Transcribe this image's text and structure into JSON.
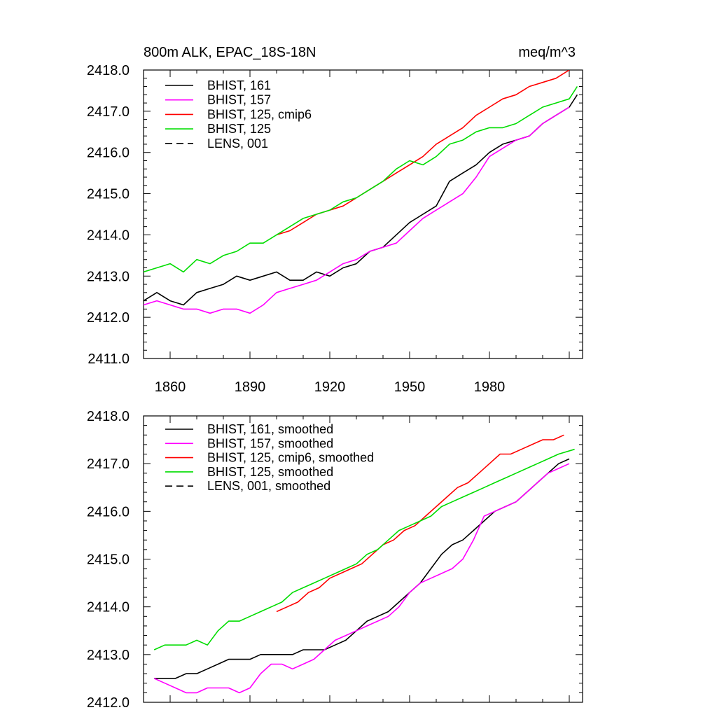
{
  "chart_data": [
    {
      "type": "line",
      "title": "800m ALK, EPAC_18S-18N",
      "units": "meq/m^3",
      "xlim": [
        1850,
        2015
      ],
      "ylim": [
        2411.0,
        2418.0
      ],
      "x_ticks": [
        1860,
        1890,
        1920,
        1950,
        1980
      ],
      "x_tick_labels": [
        "1860",
        "1890",
        "1920",
        "1950",
        "1980"
      ],
      "y_ticks": [
        2411.0,
        2412.0,
        2413.0,
        2414.0,
        2415.0,
        2416.0,
        2417.0,
        2418.0
      ],
      "y_tick_labels": [
        "2411.0",
        "2412.0",
        "2413.0",
        "2414.0",
        "2415.0",
        "2416.0",
        "2417.0",
        "2418.0"
      ],
      "legend_position": "top-left",
      "series": [
        {
          "name": "BHIST, 161",
          "color": "#000000",
          "dash": "solid",
          "x": [
            1850,
            1855,
            1860,
            1865,
            1870,
            1875,
            1880,
            1885,
            1890,
            1895,
            1900,
            1905,
            1910,
            1915,
            1920,
            1925,
            1930,
            1935,
            1940,
            1945,
            1950,
            1955,
            1960,
            1965,
            1970,
            1975,
            1980,
            1985,
            1990,
            1995,
            2000,
            2005,
            2010,
            2013
          ],
          "y": [
            2412.4,
            2412.6,
            2412.4,
            2412.3,
            2412.6,
            2412.7,
            2412.8,
            2413.0,
            2412.9,
            2413.0,
            2413.1,
            2412.9,
            2412.9,
            2413.1,
            2413.0,
            2413.2,
            2413.3,
            2413.6,
            2413.7,
            2414.0,
            2414.3,
            2414.5,
            2414.7,
            2415.3,
            2415.5,
            2415.7,
            2416.0,
            2416.2,
            2416.3,
            2416.4,
            2416.7,
            2416.9,
            2417.1,
            2417.4
          ]
        },
        {
          "name": "BHIST, 157",
          "color": "#ff00ff",
          "dash": "solid",
          "x": [
            1850,
            1855,
            1860,
            1865,
            1870,
            1875,
            1880,
            1885,
            1890,
            1895,
            1900,
            1905,
            1910,
            1915,
            1920,
            1925,
            1930,
            1935,
            1940,
            1945,
            1950,
            1955,
            1960,
            1965,
            1970,
            1975,
            1980,
            1985,
            1990,
            1995,
            2000,
            2005,
            2010
          ],
          "y": [
            2412.3,
            2412.4,
            2412.3,
            2412.2,
            2412.2,
            2412.1,
            2412.2,
            2412.2,
            2412.1,
            2412.3,
            2412.6,
            2412.7,
            2412.8,
            2412.9,
            2413.1,
            2413.3,
            2413.4,
            2413.6,
            2413.7,
            2413.8,
            2414.1,
            2414.4,
            2414.6,
            2414.8,
            2415.0,
            2415.4,
            2415.9,
            2416.1,
            2416.3,
            2416.4,
            2416.7,
            2416.9,
            2417.1
          ]
        },
        {
          "name": "BHIST, 125, cmip6",
          "color": "#ff0000",
          "dash": "solid",
          "x": [
            1900,
            1905,
            1910,
            1915,
            1920,
            1925,
            1930,
            1935,
            1940,
            1945,
            1950,
            1955,
            1960,
            1965,
            1970,
            1975,
            1980,
            1985,
            1990,
            1995,
            2000,
            2005,
            2010
          ],
          "y": [
            2414.0,
            2414.1,
            2414.3,
            2414.5,
            2414.6,
            2414.7,
            2414.9,
            2415.1,
            2415.3,
            2415.5,
            2415.7,
            2415.9,
            2416.2,
            2416.4,
            2416.6,
            2416.9,
            2417.1,
            2417.3,
            2417.4,
            2417.6,
            2417.7,
            2417.8,
            2418.0
          ]
        },
        {
          "name": "BHIST, 125",
          "color": "#00dd00",
          "dash": "solid",
          "x": [
            1850,
            1855,
            1860,
            1865,
            1870,
            1875,
            1880,
            1885,
            1890,
            1895,
            1900,
            1905,
            1910,
            1915,
            1920,
            1925,
            1930,
            1935,
            1940,
            1945,
            1950,
            1955,
            1960,
            1965,
            1970,
            1975,
            1980,
            1985,
            1990,
            1995,
            2000,
            2005,
            2010,
            2013
          ],
          "y": [
            2413.1,
            2413.2,
            2413.3,
            2413.1,
            2413.4,
            2413.3,
            2413.5,
            2413.6,
            2413.8,
            2413.8,
            2414.0,
            2414.2,
            2414.4,
            2414.5,
            2414.6,
            2414.8,
            2414.9,
            2415.1,
            2415.3,
            2415.6,
            2415.8,
            2415.7,
            2415.9,
            2416.2,
            2416.3,
            2416.5,
            2416.6,
            2416.6,
            2416.7,
            2416.9,
            2417.1,
            2417.2,
            2417.3,
            2417.6
          ]
        },
        {
          "name": "LENS, 001",
          "color": "#000000",
          "dash": "dashed",
          "x": [],
          "y": []
        }
      ]
    },
    {
      "type": "line",
      "xlim": [
        1850,
        2015
      ],
      "ylim": [
        2412.0,
        2418.0
      ],
      "x_ticks": [
        1860,
        1890,
        1920,
        1950,
        1980
      ],
      "y_ticks": [
        2412.0,
        2413.0,
        2414.0,
        2415.0,
        2416.0,
        2417.0,
        2418.0
      ],
      "y_tick_labels": [
        "2412.0",
        "2413.0",
        "2414.0",
        "2415.0",
        "2416.0",
        "2417.0",
        "2418.0"
      ],
      "legend_position": "top-left",
      "series": [
        {
          "name": "BHIST, 161, smoothed",
          "color": "#000000",
          "dash": "solid",
          "x": [
            1854,
            1858,
            1862,
            1866,
            1870,
            1874,
            1878,
            1882,
            1886,
            1890,
            1894,
            1898,
            1902,
            1906,
            1910,
            1914,
            1918,
            1922,
            1926,
            1930,
            1934,
            1938,
            1942,
            1946,
            1950,
            1954,
            1958,
            1962,
            1966,
            1970,
            1974,
            1978,
            1982,
            1986,
            1990,
            1994,
            1998,
            2002,
            2006,
            2010
          ],
          "y": [
            2412.5,
            2412.5,
            2412.5,
            2412.6,
            2412.6,
            2412.7,
            2412.8,
            2412.9,
            2412.9,
            2412.9,
            2413.0,
            2413.0,
            2413.0,
            2413.0,
            2413.1,
            2413.1,
            2413.1,
            2413.2,
            2413.3,
            2413.5,
            2413.7,
            2413.8,
            2413.9,
            2414.1,
            2414.3,
            2414.5,
            2414.8,
            2415.1,
            2415.3,
            2415.4,
            2415.6,
            2415.8,
            2416.0,
            2416.1,
            2416.2,
            2416.4,
            2416.6,
            2416.8,
            2417.0,
            2417.1
          ]
        },
        {
          "name": "BHIST, 157, smoothed",
          "color": "#ff00ff",
          "dash": "solid",
          "x": [
            1854,
            1858,
            1862,
            1866,
            1870,
            1874,
            1878,
            1882,
            1886,
            1890,
            1894,
            1898,
            1902,
            1906,
            1910,
            1914,
            1918,
            1922,
            1926,
            1930,
            1934,
            1938,
            1942,
            1946,
            1950,
            1954,
            1958,
            1962,
            1966,
            1970,
            1974,
            1978,
            1982,
            1986,
            1990,
            1994,
            1998,
            2002,
            2006,
            2010
          ],
          "y": [
            2412.5,
            2412.4,
            2412.3,
            2412.2,
            2412.2,
            2412.3,
            2412.3,
            2412.3,
            2412.2,
            2412.3,
            2412.6,
            2412.8,
            2412.8,
            2412.7,
            2412.8,
            2412.9,
            2413.1,
            2413.3,
            2413.4,
            2413.5,
            2413.6,
            2413.7,
            2413.8,
            2414.0,
            2414.3,
            2414.5,
            2414.6,
            2414.7,
            2414.8,
            2415.0,
            2415.4,
            2415.9,
            2416.0,
            2416.1,
            2416.2,
            2416.4,
            2416.6,
            2416.8,
            2416.9,
            2417.0
          ]
        },
        {
          "name": "BHIST, 125, cmip6, smoothed",
          "color": "#ff0000",
          "dash": "solid",
          "x": [
            1900,
            1904,
            1908,
            1912,
            1916,
            1920,
            1924,
            1928,
            1932,
            1936,
            1940,
            1944,
            1948,
            1952,
            1956,
            1960,
            1964,
            1968,
            1972,
            1976,
            1980,
            1984,
            1988,
            1992,
            1996,
            2000,
            2004,
            2008
          ],
          "y": [
            2413.9,
            2414.0,
            2414.1,
            2414.3,
            2414.4,
            2414.6,
            2414.7,
            2414.8,
            2414.9,
            2415.1,
            2415.3,
            2415.4,
            2415.6,
            2415.7,
            2415.9,
            2416.1,
            2416.3,
            2416.5,
            2416.6,
            2416.8,
            2417.0,
            2417.2,
            2417.2,
            2417.3,
            2417.4,
            2417.5,
            2417.5,
            2417.6
          ]
        },
        {
          "name": "BHIST, 125, smoothed",
          "color": "#00dd00",
          "dash": "solid",
          "x": [
            1854,
            1858,
            1862,
            1866,
            1870,
            1874,
            1878,
            1882,
            1886,
            1890,
            1894,
            1898,
            1902,
            1906,
            1910,
            1914,
            1918,
            1922,
            1926,
            1930,
            1934,
            1938,
            1942,
            1946,
            1950,
            1954,
            1958,
            1962,
            1966,
            1970,
            1974,
            1978,
            1982,
            1986,
            1990,
            1994,
            1998,
            2002,
            2006,
            2012
          ],
          "y": [
            2413.1,
            2413.2,
            2413.2,
            2413.2,
            2413.3,
            2413.2,
            2413.5,
            2413.7,
            2413.7,
            2413.8,
            2413.9,
            2414.0,
            2414.1,
            2414.3,
            2414.4,
            2414.5,
            2414.6,
            2414.7,
            2414.8,
            2414.9,
            2415.1,
            2415.2,
            2415.4,
            2415.6,
            2415.7,
            2415.8,
            2415.9,
            2416.1,
            2416.2,
            2416.3,
            2416.4,
            2416.5,
            2416.6,
            2416.7,
            2416.8,
            2416.9,
            2417.0,
            2417.1,
            2417.2,
            2417.3
          ]
        },
        {
          "name": "LENS, 001, smoothed",
          "color": "#000000",
          "dash": "dashed",
          "x": [],
          "y": []
        }
      ]
    }
  ]
}
